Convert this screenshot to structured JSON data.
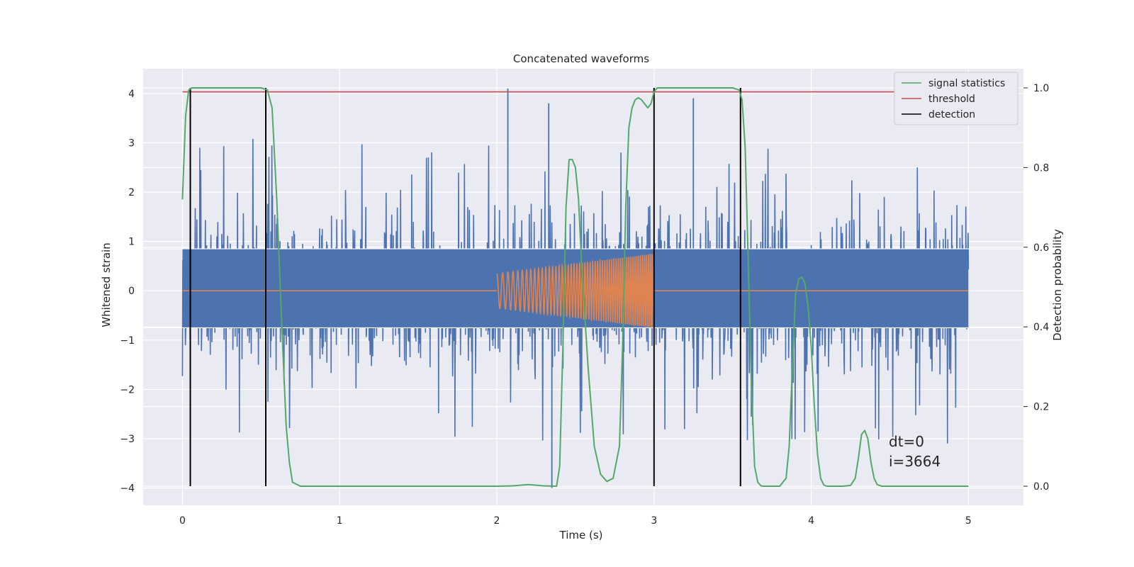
{
  "chart_data": {
    "type": "line",
    "title": "Concatenated waveforms",
    "xlabel": "Time (s)",
    "ylabel": "Whitened strain",
    "ylabel_right": "Detection probability",
    "xlim": [
      -0.25,
      5.35
    ],
    "ylim": [
      -4.35,
      4.5
    ],
    "ylim_right": [
      -0.048,
      1.048
    ],
    "x_ticks": [
      0,
      1,
      2,
      3,
      4,
      5
    ],
    "y_ticks": [
      -4,
      -3,
      -2,
      -1,
      0,
      1,
      2,
      3,
      4
    ],
    "y_ticks_right": [
      0.0,
      0.2,
      0.4,
      0.6,
      0.8,
      1.0
    ],
    "grid": true,
    "legend_position": "top-right",
    "legend": [
      {
        "label": "signal statistics",
        "color": "#55a868"
      },
      {
        "label": "threshold",
        "color": "#c44e52"
      },
      {
        "label": "detection",
        "color": "#000000"
      }
    ],
    "annotation": {
      "line1": "dt=0",
      "line2": "i=3664"
    },
    "colors": {
      "strain": "#4c72b0",
      "template": "#dd8452",
      "statistic": "#55a868",
      "threshold": "#c44e52",
      "detection": "#000000",
      "background": "#eaeaf2"
    },
    "series": [
      {
        "name": "signal statistics",
        "axis": "right",
        "x": [
          0.0,
          0.02,
          0.04,
          0.06,
          0.08,
          0.1,
          0.2,
          0.3,
          0.4,
          0.5,
          0.54,
          0.57,
          0.6,
          0.63,
          0.66,
          0.68,
          0.7,
          0.75,
          1.0,
          1.5,
          2.0,
          2.1,
          2.2,
          2.3,
          2.38,
          2.4,
          2.42,
          2.44,
          2.46,
          2.48,
          2.5,
          2.52,
          2.54,
          2.58,
          2.62,
          2.66,
          2.7,
          2.74,
          2.78,
          2.8,
          2.82,
          2.84,
          2.86,
          2.88,
          2.9,
          2.92,
          2.94,
          2.96,
          2.98,
          3.0,
          3.02,
          3.04,
          3.06,
          3.1,
          3.2,
          3.3,
          3.4,
          3.5,
          3.54,
          3.56,
          3.58,
          3.6,
          3.62,
          3.64,
          3.66,
          3.68,
          3.7,
          3.75,
          3.8,
          3.84,
          3.86,
          3.88,
          3.9,
          3.92,
          3.94,
          3.96,
          3.98,
          4.0,
          4.02,
          4.04,
          4.06,
          4.08,
          4.1,
          4.15,
          4.2,
          4.25,
          4.28,
          4.3,
          4.32,
          4.34,
          4.36,
          4.38,
          4.4,
          4.42,
          4.45,
          4.5,
          5.0
        ],
        "y": [
          0.72,
          0.93,
          0.995,
          1.0,
          1.0,
          1.0,
          1.0,
          1.0,
          1.0,
          1.0,
          0.995,
          0.95,
          0.72,
          0.42,
          0.15,
          0.06,
          0.01,
          0.0,
          0.0,
          0.0,
          0.0,
          0.001,
          0.004,
          0.001,
          0.0,
          0.05,
          0.35,
          0.7,
          0.82,
          0.82,
          0.8,
          0.72,
          0.55,
          0.3,
          0.1,
          0.03,
          0.012,
          0.02,
          0.1,
          0.35,
          0.7,
          0.9,
          0.95,
          0.97,
          0.975,
          0.97,
          0.96,
          0.95,
          0.96,
          0.99,
          1.0,
          1.0,
          1.0,
          1.0,
          1.0,
          1.0,
          1.0,
          1.0,
          0.995,
          0.97,
          0.85,
          0.55,
          0.25,
          0.05,
          0.01,
          0.001,
          0.0,
          0.0,
          0.0,
          0.02,
          0.1,
          0.3,
          0.48,
          0.52,
          0.525,
          0.51,
          0.45,
          0.35,
          0.2,
          0.08,
          0.02,
          0.003,
          0.0,
          0.0,
          0.0,
          0.002,
          0.02,
          0.07,
          0.13,
          0.14,
          0.12,
          0.06,
          0.02,
          0.004,
          0.0,
          0.0,
          0.0
        ]
      },
      {
        "name": "threshold",
        "axis": "right",
        "x": [
          0.0,
          5.0
        ],
        "y": [
          0.99,
          0.99
        ]
      },
      {
        "name": "detection",
        "axis": "right",
        "x": [
          0.05,
          0.53,
          3.0,
          3.55
        ],
        "y_range": [
          0.0,
          1.0
        ]
      },
      {
        "name": "",
        "axis": "left",
        "type": "noise",
        "x_range": [
          0.0,
          5.0
        ],
        "y_peak_range": [
          -4.0,
          4.1
        ],
        "y_band": [
          -0.75,
          0.85
        ]
      },
      {
        "name": "",
        "axis": "left",
        "type": "chirp",
        "x_range": [
          2.0,
          3.0
        ],
        "amplitude_range": [
          0.35,
          0.75
        ],
        "flat_value": 0
      }
    ]
  }
}
